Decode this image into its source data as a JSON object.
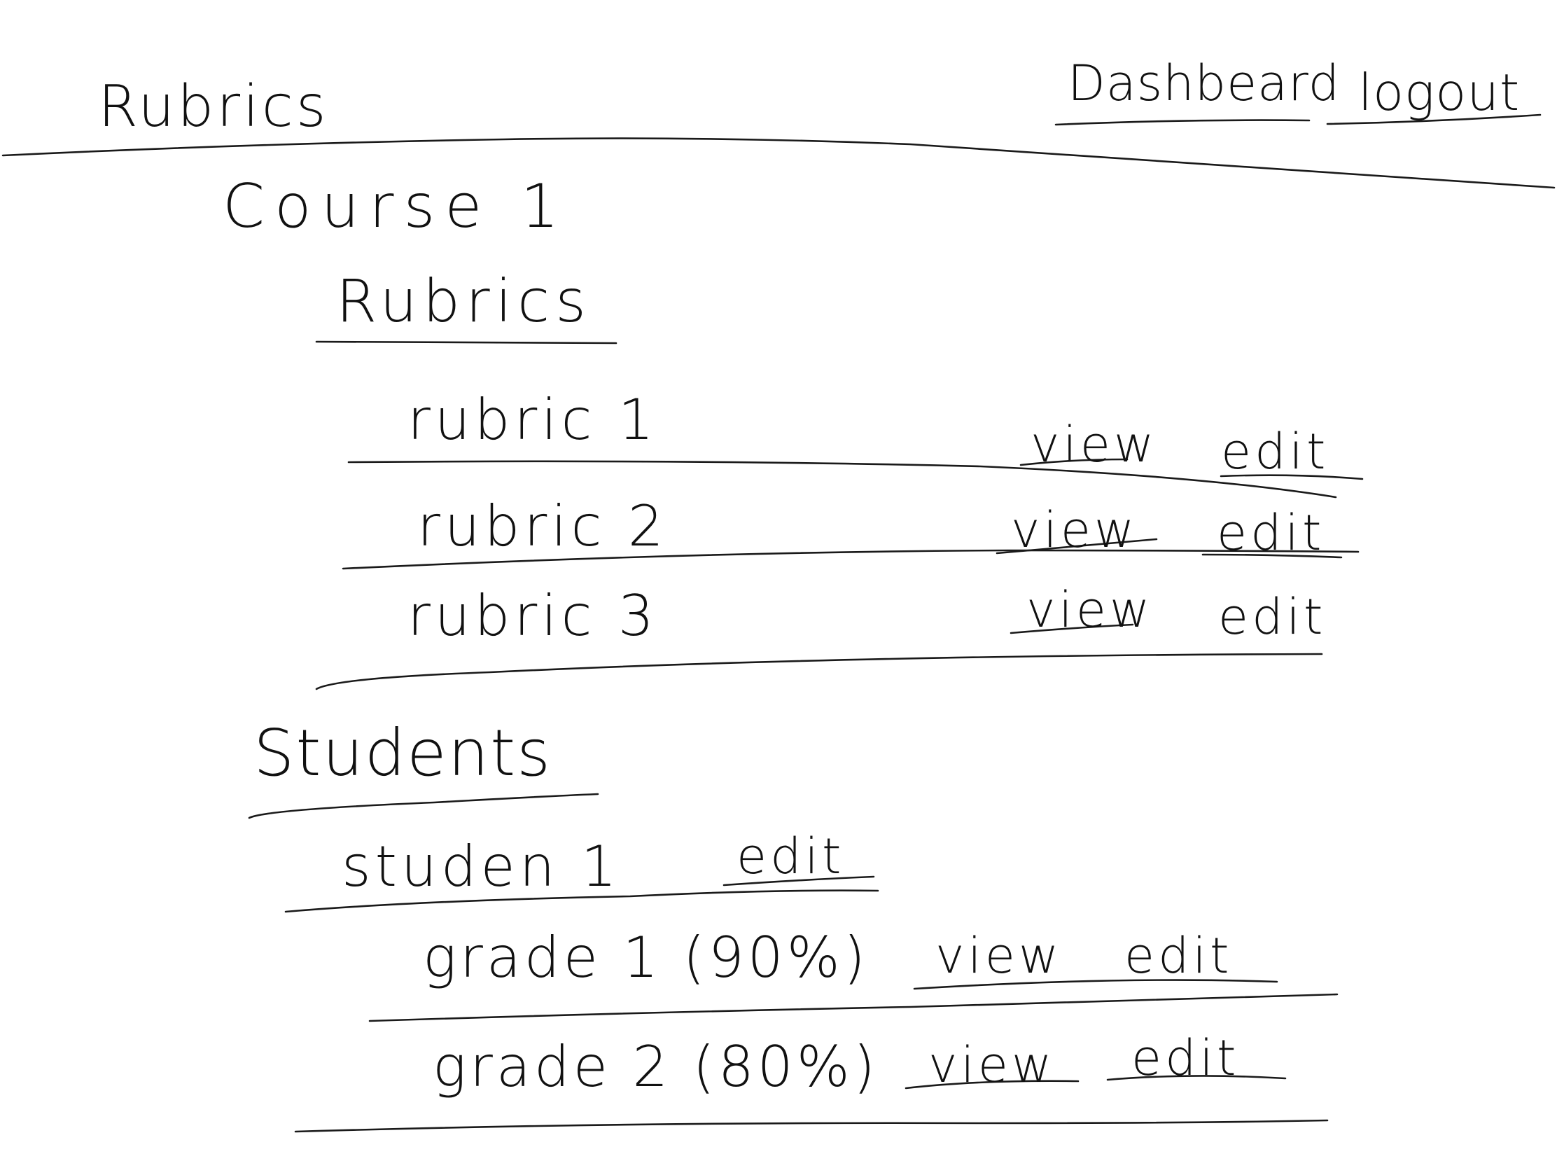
{
  "header": {
    "title": "Rubrics",
    "nav": {
      "dashboard": "Dashbeard",
      "logout": "logout"
    }
  },
  "course": {
    "title": "Course 1",
    "rubrics_section": {
      "heading": "Rubrics",
      "items": [
        {
          "name": "rubric 1",
          "view": "view",
          "edit": "edit"
        },
        {
          "name": "rubric 2",
          "view": "view",
          "edit": "edit"
        },
        {
          "name": "rubric 3",
          "view": "view",
          "edit": "edit"
        }
      ]
    },
    "students_section": {
      "heading": "Students",
      "students": [
        {
          "name": "studen 1",
          "edit": "edit",
          "grades": [
            {
              "label": "grade 1 (90%)",
              "view": "view",
              "edit": "edit"
            },
            {
              "label": "grade 2 (80%)",
              "view": "view",
              "edit": "edit"
            }
          ]
        }
      ]
    }
  },
  "colors": {
    "ink": "#1a1a1a",
    "paper": "#ffffff"
  }
}
